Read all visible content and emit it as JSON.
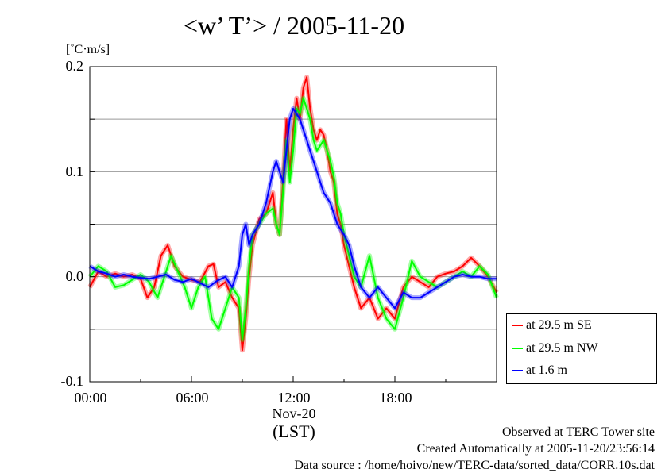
{
  "chart_data": {
    "type": "line",
    "title": "<w’ T’> / 2005-11-20",
    "ylabel": "[˚C·m/s]",
    "xlabel": "(LST)",
    "date_label": "Nov-20",
    "x_range_hours": [
      0,
      24
    ],
    "ylim": [
      -0.1,
      0.2
    ],
    "y_ticks": [
      "0.2",
      "0.1",
      "0.0",
      "-0.1"
    ],
    "x_ticks": [
      "00:00",
      "06:00",
      "12:00",
      "18:00"
    ],
    "grid": true,
    "legend_position": "bottom-right",
    "series": [
      {
        "name": "at 29.5 m SE",
        "color": "#ff0000",
        "x": [
          0.0,
          0.5,
          1.0,
          1.5,
          2.0,
          2.5,
          3.0,
          3.4,
          3.8,
          4.2,
          4.6,
          5.0,
          5.5,
          6.0,
          6.5,
          7.0,
          7.3,
          7.6,
          8.0,
          8.4,
          8.8,
          9.0,
          9.2,
          9.4,
          9.6,
          10.0,
          10.4,
          10.8,
          11.0,
          11.2,
          11.4,
          11.6,
          11.8,
          12.0,
          12.2,
          12.4,
          12.6,
          12.8,
          13.0,
          13.2,
          13.4,
          13.6,
          13.8,
          14.0,
          14.2,
          14.4,
          14.6,
          14.8,
          15.0,
          15.3,
          15.6,
          16.0,
          16.5,
          17.0,
          17.5,
          18.0,
          18.5,
          19.0,
          19.5,
          20.0,
          20.5,
          21.0,
          21.5,
          22.0,
          22.5,
          23.0,
          23.5,
          24.0
        ],
        "y": [
          -0.01,
          0.005,
          0.0,
          0.003,
          0.0,
          0.002,
          -0.002,
          -0.02,
          -0.01,
          0.02,
          0.03,
          0.01,
          0.0,
          -0.003,
          -0.005,
          0.01,
          0.012,
          -0.01,
          -0.005,
          -0.02,
          -0.03,
          -0.07,
          -0.04,
          0.0,
          0.03,
          0.055,
          0.06,
          0.08,
          0.05,
          0.04,
          0.09,
          0.15,
          0.1,
          0.14,
          0.17,
          0.15,
          0.18,
          0.19,
          0.16,
          0.14,
          0.13,
          0.14,
          0.135,
          0.12,
          0.1,
          0.09,
          0.06,
          0.05,
          0.03,
          0.01,
          -0.01,
          -0.03,
          -0.02,
          -0.04,
          -0.03,
          -0.04,
          -0.01,
          0.0,
          -0.005,
          -0.01,
          0.0,
          0.003,
          0.005,
          0.01,
          0.018,
          0.01,
          0.0,
          -0.015
        ]
      },
      {
        "name": "at 29.5 m NW",
        "color": "#00ff00",
        "x": [
          0.0,
          0.5,
          1.0,
          1.5,
          2.0,
          2.5,
          3.0,
          3.5,
          4.0,
          4.4,
          4.8,
          5.2,
          5.6,
          6.0,
          6.4,
          6.8,
          7.2,
          7.6,
          8.0,
          8.4,
          8.8,
          9.0,
          9.2,
          9.4,
          9.6,
          10.0,
          10.4,
          10.8,
          11.0,
          11.2,
          11.4,
          11.6,
          11.8,
          12.0,
          12.2,
          12.4,
          12.6,
          12.8,
          13.0,
          13.2,
          13.4,
          13.6,
          13.8,
          14.0,
          14.2,
          14.4,
          14.6,
          14.8,
          15.0,
          15.3,
          15.6,
          16.0,
          16.5,
          17.0,
          17.5,
          18.0,
          18.5,
          19.0,
          19.5,
          20.0,
          20.5,
          21.0,
          21.5,
          22.0,
          22.5,
          23.0,
          23.5,
          24.0
        ],
        "y": [
          0.0,
          0.01,
          0.005,
          -0.01,
          -0.008,
          -0.003,
          0.002,
          -0.005,
          -0.02,
          0.0,
          0.02,
          0.005,
          -0.01,
          -0.03,
          -0.01,
          0.0,
          -0.04,
          -0.05,
          -0.03,
          -0.01,
          -0.02,
          -0.06,
          -0.03,
          0.01,
          0.04,
          0.05,
          0.06,
          0.065,
          0.05,
          0.04,
          0.08,
          0.13,
          0.09,
          0.12,
          0.16,
          0.155,
          0.17,
          0.16,
          0.15,
          0.13,
          0.12,
          0.125,
          0.13,
          0.12,
          0.11,
          0.095,
          0.07,
          0.06,
          0.04,
          0.02,
          0.0,
          -0.01,
          0.02,
          -0.02,
          -0.04,
          -0.05,
          -0.02,
          0.015,
          0.0,
          -0.005,
          -0.01,
          -0.005,
          0.0,
          0.005,
          0.0,
          0.01,
          0.002,
          -0.02
        ]
      },
      {
        "name": "at 1.6 m",
        "color": "#0000ff",
        "x": [
          0.0,
          0.5,
          1.0,
          1.5,
          2.0,
          2.5,
          3.0,
          3.5,
          4.0,
          4.5,
          5.0,
          5.5,
          6.0,
          6.5,
          7.0,
          7.5,
          8.0,
          8.4,
          8.8,
          9.0,
          9.2,
          9.4,
          9.6,
          10.0,
          10.4,
          10.8,
          11.0,
          11.2,
          11.4,
          11.6,
          11.8,
          12.0,
          12.2,
          12.4,
          12.6,
          12.8,
          13.0,
          13.2,
          13.4,
          13.6,
          13.8,
          14.0,
          14.2,
          14.4,
          14.6,
          14.8,
          15.0,
          15.3,
          15.6,
          16.0,
          16.5,
          17.0,
          17.5,
          18.0,
          18.5,
          19.0,
          19.5,
          20.0,
          20.5,
          21.0,
          21.5,
          22.0,
          22.5,
          23.0,
          23.5,
          24.0
        ],
        "y": [
          0.01,
          0.005,
          0.003,
          0.0,
          0.002,
          0.0,
          -0.001,
          -0.002,
          0.0,
          0.002,
          -0.003,
          -0.005,
          -0.002,
          -0.006,
          -0.01,
          -0.004,
          0.0,
          -0.01,
          0.01,
          0.04,
          0.05,
          0.03,
          0.04,
          0.05,
          0.07,
          0.1,
          0.11,
          0.1,
          0.09,
          0.12,
          0.15,
          0.16,
          0.155,
          0.15,
          0.14,
          0.13,
          0.12,
          0.11,
          0.1,
          0.09,
          0.08,
          0.075,
          0.07,
          0.06,
          0.05,
          0.045,
          0.04,
          0.03,
          0.01,
          -0.01,
          -0.02,
          -0.01,
          -0.02,
          -0.03,
          -0.015,
          -0.02,
          -0.02,
          -0.015,
          -0.01,
          -0.005,
          0.0,
          0.002,
          0.0,
          0.0,
          -0.002,
          -0.002
        ]
      }
    ]
  },
  "footer": {
    "line1": "Observed at TERC Tower site",
    "line2": "Created Automatically at 2005-11-20/23:56:14",
    "line3": "Data source : /home/hoivo/new/TERC-data/sorted_data/CORR.10s.dat"
  }
}
